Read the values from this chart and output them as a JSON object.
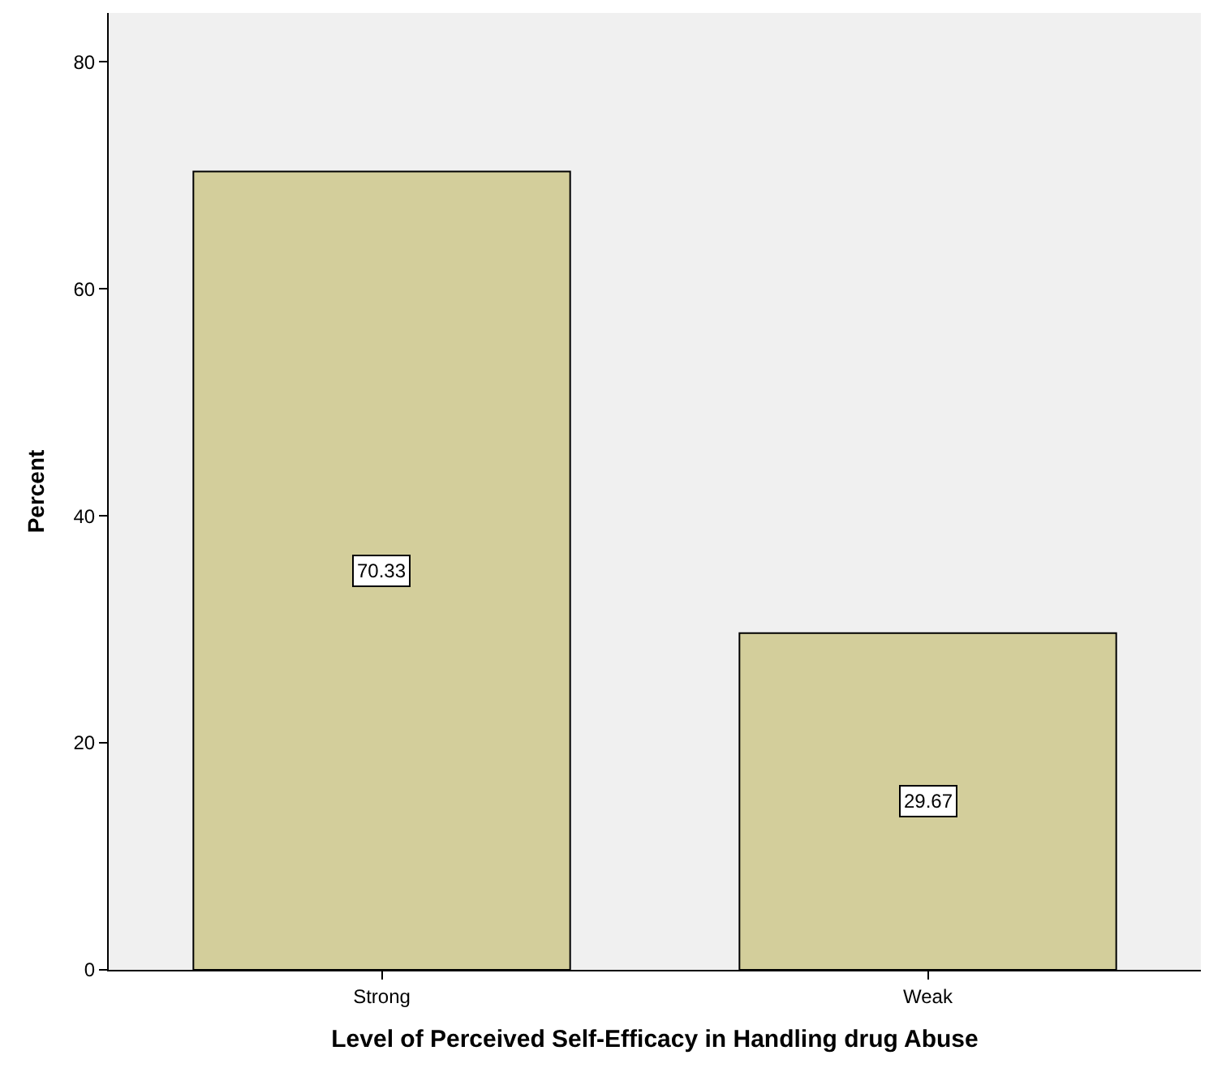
{
  "chart_data": {
    "type": "bar",
    "xlabel": "Level of Perceived Self-Efficacy in Handling drug Abuse",
    "ylabel": "Percent",
    "categories": [
      "Strong",
      "Weak"
    ],
    "values": [
      70.33,
      29.67
    ],
    "color": "#d3ce9b",
    "ylim": [
      0,
      84.3
    ],
    "yticks": [
      0,
      20,
      40,
      60,
      80
    ],
    "grid": false,
    "data_labels": true
  }
}
